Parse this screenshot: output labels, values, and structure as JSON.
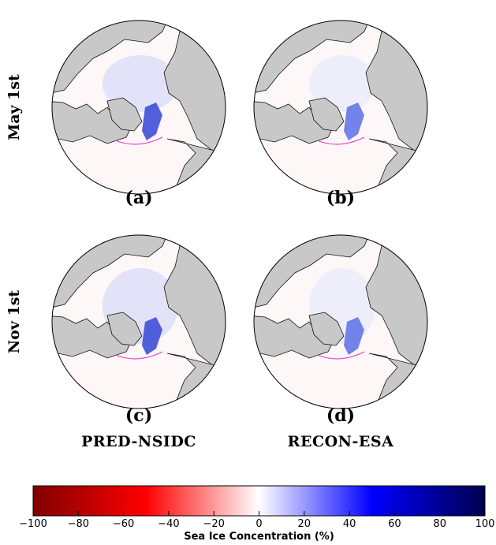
{
  "rows": [
    "May 1st",
    "Nov 1st"
  ],
  "panels": [
    "(a)",
    "(b)",
    "(c)",
    "(d)"
  ],
  "columns": [
    "PRED-NSIDC",
    "RECON-ESA"
  ],
  "colorbar": {
    "label": "Sea Ice Concentration (%)",
    "lim": [
      -100,
      100
    ],
    "ticks": [
      {
        "value": -100,
        "label": "−100"
      },
      {
        "value": -80,
        "label": "−80"
      },
      {
        "value": -60,
        "label": "−60"
      },
      {
        "value": -40,
        "label": "−40"
      },
      {
        "value": -20,
        "label": "−20"
      },
      0,
      20,
      40,
      60,
      80,
      100
    ],
    "colors": [
      "#800000",
      "#ff0000",
      "#ffffff",
      "#0000ff",
      "#00004d"
    ]
  }
}
